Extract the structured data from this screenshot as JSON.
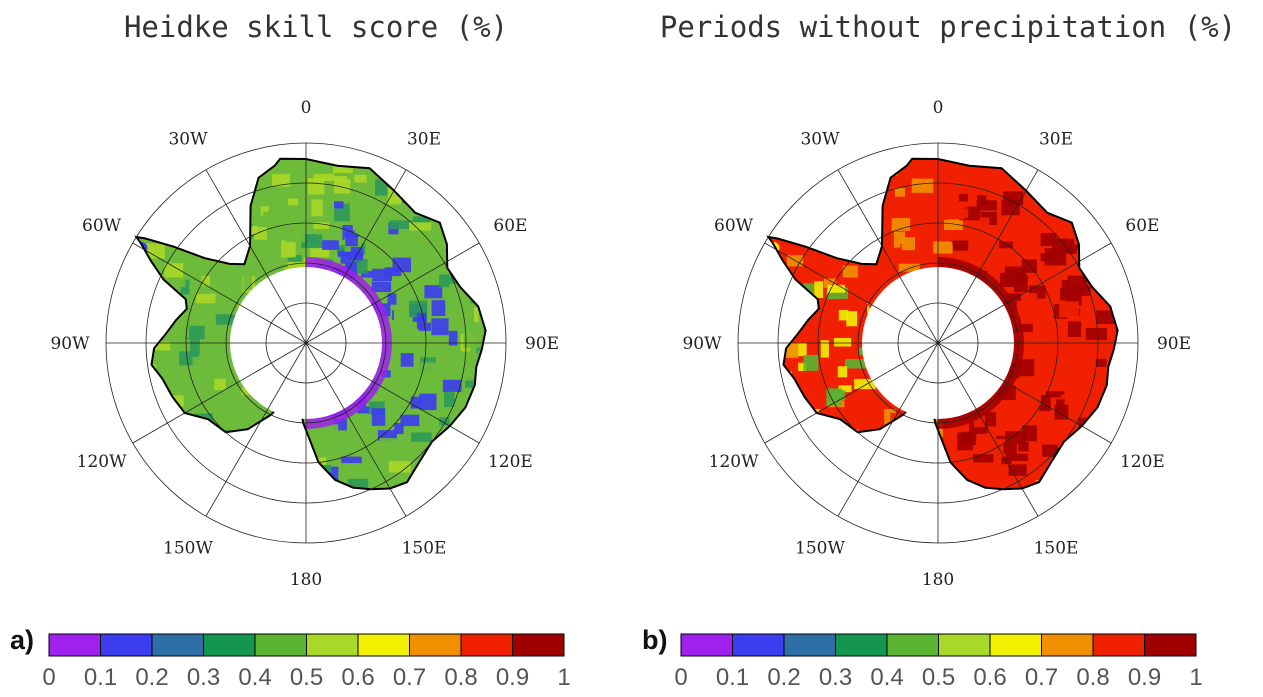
{
  "panels": [
    {
      "letter": "a)",
      "title": "Heidke skill score (%)",
      "kind": "heidke"
    },
    {
      "letter": "b)",
      "title": "Periods without precipitation (%)",
      "kind": "dry"
    }
  ],
  "longitude_labels": [
    "0",
    "30E",
    "60E",
    "90E",
    "120E",
    "150E",
    "180",
    "150W",
    "120W",
    "90W",
    "60W",
    "30W"
  ],
  "colorbar": {
    "colors": [
      "#a020f0",
      "#3c3cf0",
      "#2e6ea6",
      "#149650",
      "#5ab432",
      "#a8d828",
      "#f0f000",
      "#f09000",
      "#f02000",
      "#a00000"
    ],
    "ticks": [
      "0",
      "0.1",
      "0.2",
      "0.3",
      "0.4",
      "0.5",
      "0.6",
      "0.7",
      "0.8",
      "0.9",
      "1"
    ]
  },
  "map_colors": {
    "heidke": {
      "base": "#6dbb3a",
      "mid": "#2c9a5a",
      "high": "#a8d828",
      "low": "#3c3cf0",
      "lowest": "#a020f0"
    },
    "dry": {
      "base": "#f02000",
      "mid": "#f09000",
      "high": "#a00000",
      "low": "#f0f000",
      "lowest": "#5ab432"
    }
  }
}
